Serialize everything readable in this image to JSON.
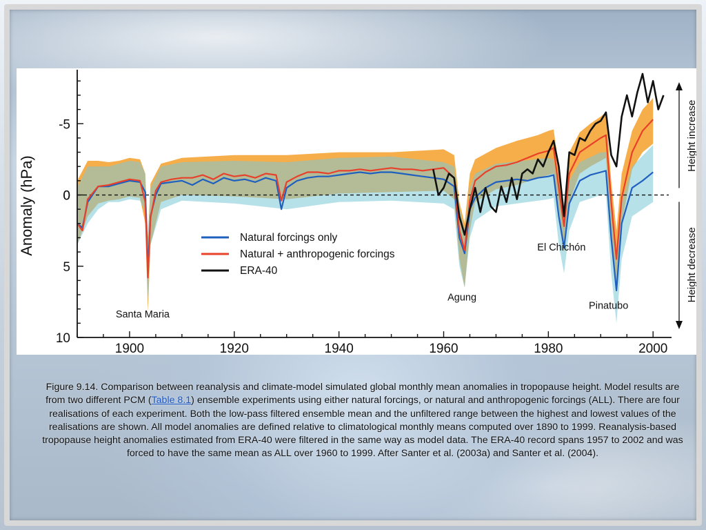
{
  "caption": {
    "before_link": "Figure 9.14. Comparison between reanalysis and climate-model simulated global monthly mean anomalies in tropopause height. Model results are from two different PCM (",
    "link_text": "Table 8.1",
    "after_link": ") ensemble experiments using either natural forcings, or natural and anthropogenic forcings (ALL). There are four realisations of each experiment. Both the low-pass filtered ensemble mean and the unfiltered range between the highest and lowest values of the realisations are shown. All model anomalies are defined relative to climatological monthly means computed over 1890 to 1999. Reanalysis-based tropopause height anomalies estimated from ERA-40 were filtered in the same way as model data. The ERA-40 record spans 1957 to 2002 and was forced to have the same mean as ALL over 1960 to 1999. After Santer et al. (2003a) and Santer et al. (2004)."
  },
  "chart_data": {
    "type": "line",
    "ylabel": "Anomaly (hPa)",
    "xlabel": "",
    "xlim": [
      1890,
      2003
    ],
    "ylim": [
      -8.5,
      10
    ],
    "y_inverted": true,
    "x_ticks": [
      1900,
      1920,
      1940,
      1960,
      1980,
      2000
    ],
    "y_ticks": [
      -5,
      0,
      5,
      10
    ],
    "zero_line": "dashed",
    "right_labels": {
      "top": "Height increase",
      "bottom": "Height decrease"
    },
    "legend": {
      "placement": "center-left",
      "entries": [
        "Natural forcings only",
        "Natural + anthropogenic forcings",
        "ERA-40"
      ]
    },
    "annotations": [
      {
        "text": "Santa Maria",
        "x": 1902.5,
        "y": 8.6
      },
      {
        "text": "Agung",
        "x": 1963.5,
        "y": 7.4
      },
      {
        "text": "El Chichón",
        "x": 1982.5,
        "y": 3.9
      },
      {
        "text": "Pinatubo",
        "x": 1991.5,
        "y": 8.0
      }
    ],
    "colors": {
      "natural": "#1f5fbf",
      "all": "#e8402a",
      "era40": "#111111",
      "natural_range": "#7cc9d6",
      "all_range": "#f4a02a"
    },
    "series": [
      {
        "name": "Natural forcings only",
        "x": [
          1890,
          1891,
          1892,
          1894,
          1896,
          1898,
          1900,
          1902,
          1903,
          1903.5,
          1904,
          1905,
          1906,
          1908,
          1910,
          1912,
          1914,
          1916,
          1918,
          1920,
          1922,
          1924,
          1926,
          1928,
          1929,
          1930,
          1932,
          1934,
          1936,
          1938,
          1940,
          1942,
          1944,
          1946,
          1948,
          1950,
          1952,
          1954,
          1956,
          1958,
          1960,
          1962,
          1963,
          1964,
          1965,
          1966,
          1968,
          1970,
          1972,
          1974,
          1976,
          1978,
          1980,
          1981,
          1982,
          1983,
          1984,
          1986,
          1988,
          1990,
          1991,
          1992,
          1993,
          1994,
          1996,
          1998,
          2000
        ],
        "y": [
          2.0,
          2.3,
          0.5,
          -0.6,
          -0.6,
          -0.8,
          -1.0,
          -0.9,
          -0.2,
          5.2,
          1.5,
          0.0,
          -0.8,
          -0.9,
          -1.0,
          -0.7,
          -1.1,
          -0.8,
          -1.2,
          -1.0,
          -1.1,
          -0.9,
          -1.2,
          -1.0,
          1.0,
          -0.5,
          -1.0,
          -1.2,
          -1.3,
          -1.3,
          -1.4,
          -1.5,
          -1.6,
          -1.5,
          -1.6,
          -1.6,
          -1.5,
          -1.4,
          -1.3,
          -1.2,
          -1.1,
          -0.6,
          3.0,
          4.1,
          1.0,
          0.2,
          -0.5,
          -0.9,
          -1.0,
          -1.1,
          -1.0,
          -1.2,
          -1.3,
          -1.4,
          1.5,
          3.7,
          0.6,
          -1.0,
          -1.4,
          -1.6,
          -1.7,
          3.0,
          6.7,
          2.0,
          -0.5,
          -1.0,
          -1.6
        ]
      },
      {
        "name": "Natural + anthropogenic forcings",
        "x": [
          1890,
          1891,
          1892,
          1894,
          1896,
          1898,
          1900,
          1902,
          1903,
          1903.5,
          1904,
          1905,
          1906,
          1908,
          1910,
          1912,
          1914,
          1916,
          1918,
          1920,
          1922,
          1924,
          1926,
          1928,
          1929,
          1930,
          1932,
          1934,
          1936,
          1938,
          1940,
          1942,
          1944,
          1946,
          1948,
          1950,
          1952,
          1954,
          1956,
          1958,
          1960,
          1962,
          1963,
          1964,
          1965,
          1966,
          1968,
          1970,
          1972,
          1974,
          1976,
          1978,
          1980,
          1981,
          1982,
          1983,
          1984,
          1986,
          1988,
          1990,
          1991,
          1992,
          1993,
          1994,
          1996,
          1998,
          2000
        ],
        "y": [
          2.0,
          2.5,
          0.3,
          -0.6,
          -0.7,
          -0.9,
          -1.1,
          -1.0,
          0.5,
          5.8,
          1.6,
          -0.3,
          -0.9,
          -1.1,
          -1.2,
          -1.2,
          -1.4,
          -1.1,
          -1.5,
          -1.3,
          -1.4,
          -1.2,
          -1.5,
          -1.4,
          0.4,
          -0.9,
          -1.3,
          -1.6,
          -1.6,
          -1.5,
          -1.7,
          -1.7,
          -1.8,
          -1.7,
          -1.8,
          -1.9,
          -1.8,
          -1.8,
          -1.7,
          -1.8,
          -1.9,
          -1.2,
          2.5,
          3.9,
          0.4,
          -1.0,
          -1.6,
          -2.0,
          -2.1,
          -2.3,
          -2.6,
          -2.9,
          -3.1,
          -3.3,
          -0.5,
          2.2,
          -1.5,
          -3.0,
          -3.5,
          -4.0,
          -4.2,
          0.5,
          4.5,
          0.2,
          -3.0,
          -4.5,
          -5.3
        ]
      },
      {
        "name": "ERA-40",
        "x": [
          1958,
          1959,
          1960,
          1961,
          1962,
          1963,
          1964,
          1965,
          1966,
          1967,
          1968,
          1969,
          1970,
          1971,
          1972,
          1973,
          1974,
          1975,
          1976,
          1977,
          1978,
          1979,
          1980,
          1981,
          1982,
          1983,
          1984,
          1985,
          1986,
          1987,
          1988,
          1989,
          1990,
          1991,
          1992,
          1993,
          1994,
          1995,
          1996,
          1997,
          1998,
          1999,
          2000,
          2001,
          2002
        ],
        "y": [
          -1.8,
          0.0,
          -0.5,
          -1.5,
          -1.2,
          1.5,
          2.8,
          1.0,
          -0.5,
          1.2,
          -0.5,
          0.8,
          1.2,
          -0.6,
          0.5,
          -1.2,
          0.3,
          -1.5,
          -1.8,
          -1.5,
          -2.5,
          -2.0,
          -3.0,
          -3.8,
          -2.0,
          1.5,
          -3.0,
          -2.8,
          -4.0,
          -3.8,
          -4.5,
          -5.0,
          -5.2,
          -5.8,
          -2.8,
          -2.0,
          -5.5,
          -7.0,
          -5.5,
          -7.2,
          -8.5,
          -6.5,
          -8.0,
          -6.0,
          -7.0
        ]
      }
    ],
    "ranges": [
      {
        "name": "Natural forcings only range",
        "x": [
          1890,
          1892,
          1894,
          1896,
          1898,
          1900,
          1902,
          1903,
          1903.5,
          1904,
          1906,
          1910,
          1920,
          1930,
          1940,
          1950,
          1960,
          1962,
          1963,
          1964,
          1965,
          1966,
          1970,
          1980,
          1981,
          1982,
          1983,
          1984,
          1986,
          1990,
          1991,
          1992,
          1993,
          1994,
          1996,
          2000
        ],
        "low": [
          -0.5,
          -2.0,
          -2.0,
          -2.0,
          -2.2,
          -2.4,
          -2.3,
          -1.5,
          3.0,
          -0.5,
          -2.0,
          -2.3,
          -2.4,
          -2.3,
          -2.6,
          -2.7,
          -2.3,
          -2.0,
          0.8,
          2.5,
          -0.5,
          -1.5,
          -2.2,
          -2.6,
          -2.5,
          -0.5,
          2.0,
          -1.0,
          -2.3,
          -3.0,
          -3.0,
          1.0,
          4.8,
          0.5,
          -2.0,
          -3.5
        ],
        "high": [
          3.5,
          2.0,
          1.0,
          0.5,
          0.5,
          0.3,
          0.4,
          1.2,
          7.5,
          3.5,
          1.0,
          0.4,
          0.6,
          1.0,
          0.5,
          0.4,
          0.6,
          1.0,
          5.0,
          6.5,
          3.0,
          1.8,
          0.8,
          0.3,
          0.2,
          3.5,
          5.5,
          2.5,
          0.5,
          0.0,
          0.0,
          5.5,
          9.0,
          4.5,
          1.5,
          0.5
        ]
      },
      {
        "name": "Natural + anthropogenic forcings range",
        "x": [
          1890,
          1892,
          1894,
          1896,
          1898,
          1900,
          1902,
          1903,
          1903.5,
          1904,
          1906,
          1910,
          1920,
          1930,
          1940,
          1950,
          1960,
          1962,
          1963,
          1964,
          1965,
          1966,
          1970,
          1974,
          1978,
          1980,
          1981,
          1982,
          1983,
          1984,
          1986,
          1988,
          1990,
          1991,
          1992,
          1993,
          1994,
          1996,
          1998,
          2000
        ],
        "low": [
          -1.0,
          -2.4,
          -2.4,
          -2.3,
          -2.4,
          -2.6,
          -2.5,
          -1.5,
          3.0,
          -0.8,
          -2.2,
          -2.6,
          -2.8,
          -2.8,
          -3.0,
          -3.0,
          -3.2,
          -2.8,
          0.5,
          2.0,
          -1.5,
          -2.5,
          -3.3,
          -3.8,
          -4.2,
          -4.5,
          -4.6,
          -2.0,
          0.8,
          -3.0,
          -4.4,
          -5.0,
          -5.5,
          -5.8,
          -1.0,
          2.5,
          -1.5,
          -4.5,
          -6.0,
          -6.8
        ],
        "high": [
          3.5,
          1.5,
          0.6,
          0.4,
          0.3,
          0.1,
          0.2,
          2.0,
          8.2,
          3.5,
          0.5,
          0.0,
          0.1,
          0.3,
          -0.1,
          -0.2,
          -0.3,
          0.3,
          4.5,
          6.5,
          2.5,
          0.5,
          -0.4,
          -0.7,
          -1.2,
          -1.4,
          -1.5,
          1.0,
          4.0,
          0.5,
          -1.5,
          -2.0,
          -2.4,
          -2.6,
          2.5,
          6.5,
          2.0,
          -1.8,
          -3.0,
          -3.6
        ]
      }
    ]
  }
}
